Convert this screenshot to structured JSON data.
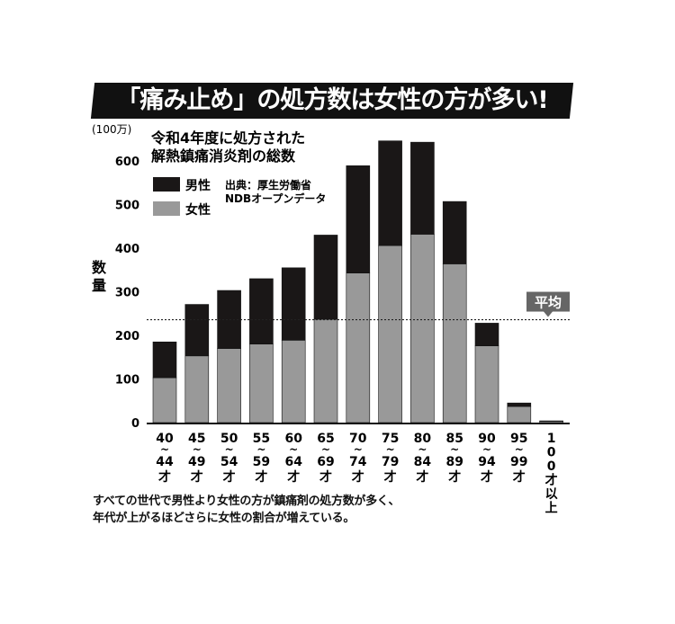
{
  "headline": "「痛み止め」の処方数は女性の方が多い!",
  "chart_data": {
    "type": "bar",
    "stacked": true,
    "title": "令和4年度に処方された解熱鎮痛消炎剤の総数",
    "title_lines": [
      "令和4年度に処方された",
      "解熱鎮痛消炎剤の総数"
    ],
    "unit": "(100万)",
    "ylabel": "数量",
    "ylim": [
      0,
      650
    ],
    "yticks": [
      0,
      100,
      200,
      300,
      400,
      500,
      600
    ],
    "ytick_labels": [
      "0",
      "100",
      "200",
      "300",
      "400",
      "500",
      "600"
    ],
    "categories": [
      "40~44才",
      "45~49才",
      "50~54才",
      "55~59才",
      "60~64才",
      "65~69才",
      "70~74才",
      "75~79才",
      "80~84才",
      "85~89才",
      "90~94才",
      "95~99才",
      "100才以上"
    ],
    "category_lines": [
      [
        "40",
        "~",
        "44",
        "才"
      ],
      [
        "45",
        "~",
        "49",
        "才"
      ],
      [
        "50",
        "~",
        "54",
        "才"
      ],
      [
        "55",
        "~",
        "59",
        "才"
      ],
      [
        "60",
        "~",
        "64",
        "才"
      ],
      [
        "65",
        "~",
        "69",
        "才"
      ],
      [
        "70",
        "~",
        "74",
        "才"
      ],
      [
        "75",
        "~",
        "79",
        "才"
      ],
      [
        "80",
        "~",
        "84",
        "才"
      ],
      [
        "85",
        "~",
        "89",
        "才"
      ],
      [
        "90",
        "~",
        "94",
        "才"
      ],
      [
        "95",
        "~",
        "99",
        "才"
      ],
      [
        "1",
        "0",
        "0",
        "才",
        "以",
        "上"
      ]
    ],
    "series": [
      {
        "name": "女性",
        "color": "#999999",
        "values": [
          103,
          153,
          170,
          180,
          189,
          237,
          343,
          406,
          432,
          364,
          176,
          37,
          3
        ]
      },
      {
        "name": "男性",
        "color": "#1a1717",
        "values": [
          82,
          118,
          133,
          150,
          166,
          193,
          246,
          240,
          211,
          143,
          52,
          8,
          1
        ]
      }
    ],
    "legend": [
      "男性",
      "女性"
    ],
    "legend_position": "top-left",
    "average": {
      "label": "平均",
      "value": 236
    },
    "source_lines": [
      "出典：厚生労働省",
      "NDBオープンデータ"
    ],
    "grid": false
  },
  "caption_lines": [
    "すべての世代で男性より女性の方が鎮痛剤の処方数が多く、",
    "年代が上がるほどさらに女性の割合が増えている。"
  ]
}
